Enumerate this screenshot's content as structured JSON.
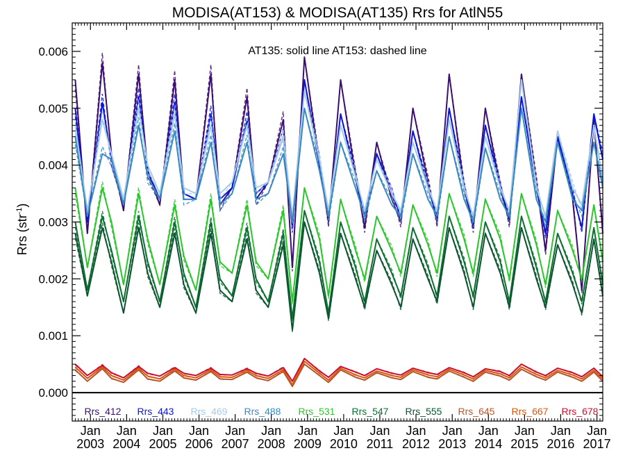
{
  "chart_data": {
    "type": "line",
    "title": "MODISA(AT153) & MODISA(AT135)  Rrs for AtlN55",
    "ylabel_main": "Rrs (str",
    "ylabel_sup": "-1",
    "ylabel_close": ")",
    "annotation": "AT135: solid line   AT153: dashed line",
    "ylim": [
      -0.0005,
      0.0065
    ],
    "yticks": [
      {
        "value": 0.0,
        "label": "0.000"
      },
      {
        "value": 0.001,
        "label": "0.001"
      },
      {
        "value": 0.002,
        "label": "0.002"
      },
      {
        "value": 0.003,
        "label": "0.003"
      },
      {
        "value": 0.004,
        "label": "0.004"
      },
      {
        "value": 0.005,
        "label": "0.005"
      },
      {
        "value": 0.006,
        "label": "0.006"
      }
    ],
    "xlim": [
      "2002-07-01",
      "2017-03-01"
    ],
    "xticks": [
      {
        "date": "2003-01-01",
        "month": "Jan",
        "year": "2003"
      },
      {
        "date": "2004-01-01",
        "month": "Jan",
        "year": "2004"
      },
      {
        "date": "2005-01-01",
        "month": "Jan",
        "year": "2005"
      },
      {
        "date": "2006-01-01",
        "month": "Jan",
        "year": "2006"
      },
      {
        "date": "2007-01-01",
        "month": "Jan",
        "year": "2007"
      },
      {
        "date": "2008-01-01",
        "month": "Jan",
        "year": "2008"
      },
      {
        "date": "2009-01-01",
        "month": "Jan",
        "year": "2009"
      },
      {
        "date": "2010-01-01",
        "month": "Jan",
        "year": "2010"
      },
      {
        "date": "2011-01-01",
        "month": "Jan",
        "year": "2011"
      },
      {
        "date": "2012-01-01",
        "month": "Jan",
        "year": "2012"
      },
      {
        "date": "2013-01-01",
        "month": "Jan",
        "year": "2013"
      },
      {
        "date": "2014-01-01",
        "month": "Jan",
        "year": "2014"
      },
      {
        "date": "2015-01-01",
        "month": "Jan",
        "year": "2015"
      },
      {
        "date": "2016-01-01",
        "month": "Jan",
        "year": "2016"
      },
      {
        "date": "2017-01-01",
        "month": "Jan",
        "year": "2017"
      }
    ],
    "zero_line": true,
    "grid": false,
    "legend_position": "bottom, inside plot",
    "x": [
      "2002-08-01",
      "2002-12-01",
      "2003-05-01",
      "2003-08-01",
      "2003-12-01",
      "2004-05-01",
      "2004-08-01",
      "2004-12-01",
      "2005-05-01",
      "2005-08-01",
      "2005-12-01",
      "2006-05-01",
      "2006-08-01",
      "2006-12-01",
      "2007-05-01",
      "2007-08-01",
      "2007-12-01",
      "2008-05-01",
      "2008-08-01",
      "2008-12-01",
      "2009-05-01",
      "2009-08-01",
      "2009-12-01",
      "2010-05-01",
      "2010-08-01",
      "2010-12-01",
      "2011-05-01",
      "2011-08-01",
      "2011-12-01",
      "2012-05-01",
      "2012-08-01",
      "2012-12-01",
      "2013-05-01",
      "2013-08-01",
      "2013-12-01",
      "2014-05-01",
      "2014-08-01",
      "2014-12-01",
      "2015-05-01",
      "2015-08-01",
      "2015-12-01",
      "2016-05-01",
      "2016-08-01",
      "2016-12-01",
      "2017-03-01"
    ],
    "series": [
      {
        "name": "Rrs_412",
        "color": "#3b0f70",
        "values": [
          0.0055,
          0.0028,
          0.0058,
          0.0042,
          0.0032,
          0.0056,
          0.0039,
          0.0033,
          0.0055,
          0.0035,
          0.0034,
          0.0056,
          0.0033,
          0.0036,
          0.0052,
          0.0034,
          0.0037,
          0.0048,
          0.0022,
          0.0059,
          0.004,
          0.003,
          0.0055,
          0.0038,
          0.0029,
          0.0044,
          0.0034,
          0.003,
          0.005,
          0.0037,
          0.003,
          0.0056,
          0.0036,
          0.0029,
          0.005,
          0.0036,
          0.003,
          0.0056,
          0.0037,
          0.0025,
          0.0045,
          0.0034,
          0.0018,
          0.0048,
          0.0028
        ]
      },
      {
        "name": "Rrs_443",
        "color": "#0a14d6",
        "values": [
          0.005,
          0.003,
          0.0051,
          0.0041,
          0.0033,
          0.0052,
          0.0039,
          0.0034,
          0.0051,
          0.0035,
          0.0034,
          0.0049,
          0.0034,
          0.0036,
          0.0048,
          0.0035,
          0.0037,
          0.0045,
          0.0029,
          0.0055,
          0.004,
          0.0031,
          0.0049,
          0.0038,
          0.0031,
          0.0042,
          0.0035,
          0.0031,
          0.0046,
          0.0036,
          0.0031,
          0.005,
          0.0036,
          0.003,
          0.0047,
          0.0036,
          0.0031,
          0.0052,
          0.0036,
          0.0028,
          0.0045,
          0.0035,
          0.0029,
          0.0049,
          0.0041
        ]
      },
      {
        "name": "Rrs_469",
        "color": "#a5cbe8",
        "values": [
          0.0047,
          0.0032,
          0.0048,
          0.0042,
          0.0034,
          0.005,
          0.004,
          0.0035,
          0.0049,
          0.0036,
          0.0035,
          0.0047,
          0.0035,
          0.0037,
          0.0047,
          0.0036,
          0.0037,
          0.0045,
          0.0031,
          0.0053,
          0.0041,
          0.0032,
          0.0047,
          0.0038,
          0.0032,
          0.0041,
          0.0035,
          0.0032,
          0.0044,
          0.0036,
          0.0032,
          0.0048,
          0.0036,
          0.0031,
          0.0045,
          0.0036,
          0.0032,
          0.0055,
          0.0036,
          0.0031,
          0.0046,
          0.0036,
          0.0033,
          0.0047,
          0.0037
        ]
      },
      {
        "name": "Rrs_488",
        "color": "#3a8ac0",
        "values": [
          0.0045,
          0.0031,
          0.0042,
          0.0041,
          0.0033,
          0.0047,
          0.0038,
          0.0034,
          0.0046,
          0.0034,
          0.0034,
          0.0044,
          0.0033,
          0.0035,
          0.0044,
          0.0034,
          0.0035,
          0.0042,
          0.003,
          0.005,
          0.0039,
          0.0031,
          0.0044,
          0.0036,
          0.0031,
          0.0039,
          0.0033,
          0.0031,
          0.0042,
          0.0034,
          0.0031,
          0.0045,
          0.0034,
          0.003,
          0.0043,
          0.0034,
          0.0031,
          0.005,
          0.0034,
          0.003,
          0.0044,
          0.0034,
          0.0032,
          0.0044,
          0.0036
        ]
      },
      {
        "name": "Rrs_531",
        "color": "#2cc62c",
        "values": [
          0.0036,
          0.0022,
          0.0036,
          0.003,
          0.0019,
          0.0035,
          0.0027,
          0.0019,
          0.0033,
          0.0024,
          0.0018,
          0.0034,
          0.0023,
          0.0021,
          0.0033,
          0.0023,
          0.002,
          0.0032,
          0.0016,
          0.0036,
          0.0027,
          0.0017,
          0.0034,
          0.0025,
          0.002,
          0.0031,
          0.0025,
          0.0021,
          0.0033,
          0.0026,
          0.0021,
          0.0035,
          0.0027,
          0.0021,
          0.0034,
          0.0027,
          0.002,
          0.0035,
          0.0026,
          0.0019,
          0.0032,
          0.0025,
          0.002,
          0.0033,
          0.0023
        ]
      },
      {
        "name": "Rrs_547",
        "color": "#0c6e30",
        "values": [
          0.003,
          0.0018,
          0.0031,
          0.0025,
          0.0016,
          0.0031,
          0.0023,
          0.0016,
          0.003,
          0.0021,
          0.0015,
          0.003,
          0.002,
          0.0017,
          0.0029,
          0.002,
          0.0016,
          0.0028,
          0.0013,
          0.0032,
          0.0023,
          0.0014,
          0.003,
          0.0022,
          0.0016,
          0.0027,
          0.0021,
          0.0017,
          0.0029,
          0.0022,
          0.0017,
          0.0031,
          0.0023,
          0.0017,
          0.003,
          0.0023,
          0.0016,
          0.0031,
          0.0022,
          0.0016,
          0.0028,
          0.0021,
          0.0016,
          0.0029,
          0.0019
        ]
      },
      {
        "name": "Rrs_555",
        "color": "#0b5530",
        "values": [
          0.0028,
          0.0017,
          0.0029,
          0.0023,
          0.0014,
          0.0029,
          0.0021,
          0.0015,
          0.0028,
          0.0019,
          0.0014,
          0.0028,
          0.0018,
          0.0016,
          0.0027,
          0.0018,
          0.0015,
          0.0026,
          0.0011,
          0.003,
          0.0021,
          0.0013,
          0.0028,
          0.002,
          0.0015,
          0.0025,
          0.0019,
          0.0015,
          0.0027,
          0.002,
          0.0016,
          0.0029,
          0.0021,
          0.0015,
          0.0028,
          0.0021,
          0.0015,
          0.0029,
          0.002,
          0.0015,
          0.0026,
          0.0019,
          0.0014,
          0.0027,
          0.0017
        ]
      },
      {
        "name": "Rrs_645",
        "color": "#b5562a",
        "values": [
          0.0004,
          0.0002,
          0.00042,
          0.00025,
          0.00018,
          0.0004,
          0.00024,
          0.0002,
          0.00038,
          0.00026,
          0.00022,
          0.00037,
          0.00024,
          0.00023,
          0.00036,
          0.00026,
          0.00021,
          0.00037,
          0.00011,
          0.0005,
          0.0003,
          0.00018,
          0.0004,
          0.00027,
          0.00022,
          0.00035,
          0.00026,
          0.00023,
          0.00037,
          0.00027,
          0.00024,
          0.00038,
          0.00027,
          0.0002,
          0.00036,
          0.00029,
          0.00022,
          0.00041,
          0.00028,
          0.00022,
          0.00036,
          0.00027,
          0.0002,
          0.00036,
          0.0002
        ]
      },
      {
        "name": "Rrs_667",
        "color": "#d9580c",
        "values": [
          0.00045,
          0.00025,
          0.00045,
          0.0003,
          0.00022,
          0.00043,
          0.00029,
          0.00024,
          0.00041,
          0.0003,
          0.00026,
          0.0004,
          0.00028,
          0.00027,
          0.00039,
          0.0003,
          0.00025,
          0.0004,
          0.00014,
          0.00055,
          0.00034,
          0.00022,
          0.00043,
          0.00031,
          0.00026,
          0.00038,
          0.0003,
          0.00027,
          0.0004,
          0.00031,
          0.00028,
          0.00041,
          0.00031,
          0.00024,
          0.00039,
          0.00033,
          0.00026,
          0.00045,
          0.00032,
          0.00026,
          0.00039,
          0.00031,
          0.00024,
          0.00039,
          0.00024
        ]
      },
      {
        "name": "Rrs_678",
        "color": "#c8102e",
        "values": [
          0.0005,
          0.0003,
          0.00048,
          0.00035,
          0.00026,
          0.00046,
          0.00034,
          0.00029,
          0.00044,
          0.00034,
          0.0003,
          0.00043,
          0.00032,
          0.00031,
          0.00042,
          0.00034,
          0.00029,
          0.00044,
          0.0002,
          0.0006,
          0.00038,
          0.00027,
          0.00046,
          0.00036,
          0.0003,
          0.00042,
          0.00034,
          0.00031,
          0.00043,
          0.00035,
          0.00032,
          0.00044,
          0.00035,
          0.00028,
          0.00042,
          0.00037,
          0.0003,
          0.0005,
          0.00036,
          0.0003,
          0.00043,
          0.00035,
          0.00028,
          0.00043,
          0.00028
        ]
      }
    ]
  }
}
